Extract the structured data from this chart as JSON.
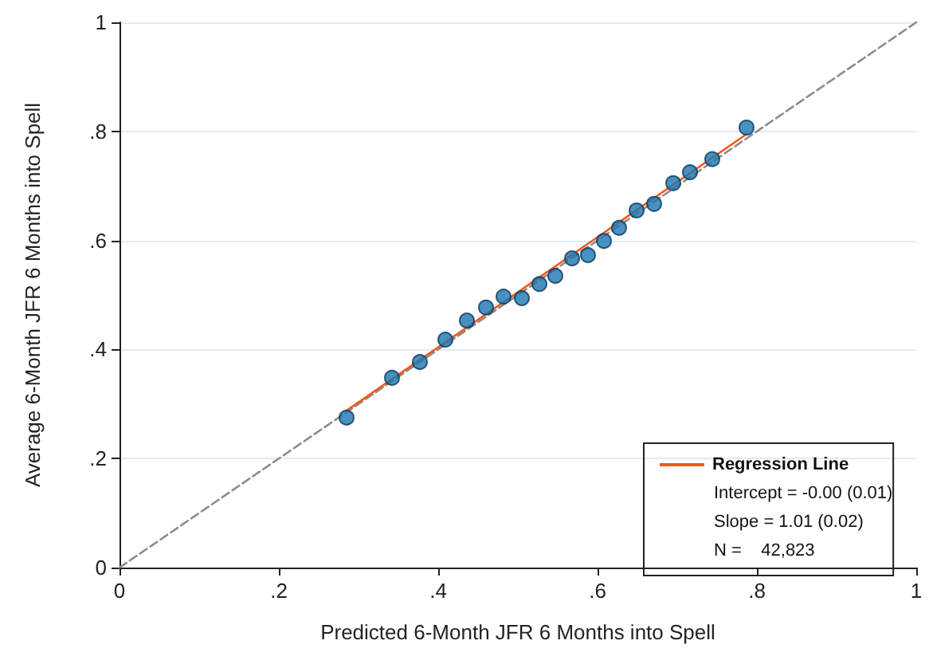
{
  "chart_data": {
    "type": "scatter",
    "xlabel": "Predicted 6-Month JFR 6 Months into Spell",
    "ylabel": "Average 6-Month JFR 6 Months into Spell",
    "xlim": [
      0,
      1
    ],
    "ylim": [
      0,
      1
    ],
    "xticks": [
      0,
      {
        "value": 0.2,
        "label": ".2"
      },
      {
        "value": 0.4,
        "label": ".4"
      },
      {
        "value": 0.6,
        "label": ".6"
      },
      {
        "value": 0.8,
        "label": ".8"
      },
      1
    ],
    "yticks": [
      0,
      {
        "value": 0.2,
        "label": ".2"
      },
      {
        "value": 0.4,
        "label": ".4"
      },
      {
        "value": 0.6,
        "label": ".6"
      },
      {
        "value": 0.8,
        "label": ".8"
      },
      1
    ],
    "grid": "y",
    "legend": "bottom right",
    "series": [
      {
        "type": "line",
        "marker": "none",
        "line_style": "dashed",
        "color": "#8c8c8c",
        "x": [
          0,
          1
        ],
        "values": [
          0,
          1
        ]
      },
      {
        "type": "line",
        "marker": "none",
        "name": "Regression Line",
        "line_style": "solid",
        "color": "#f4581e",
        "x": [
          0.285,
          0.787
        ],
        "values": [
          0.288,
          0.795
        ]
      },
      {
        "marker": "circle",
        "color": "#1a76b0",
        "x": [
          0.285,
          0.342,
          0.377,
          0.409,
          0.436,
          0.46,
          0.482,
          0.505,
          0.527,
          0.547,
          0.568,
          0.588,
          0.608,
          0.627,
          0.649,
          0.671,
          0.695,
          0.716,
          0.744,
          0.787
        ],
        "values": [
          0.275,
          0.348,
          0.377,
          0.418,
          0.453,
          0.477,
          0.497,
          0.494,
          0.52,
          0.535,
          0.567,
          0.573,
          0.599,
          0.623,
          0.655,
          0.667,
          0.705,
          0.725,
          0.749,
          0.807
        ]
      }
    ],
    "annotations": [
      "Intercept = -0.00 (0.01)",
      "Slope = 1.01 (0.02)",
      "N =    42,823"
    ]
  }
}
